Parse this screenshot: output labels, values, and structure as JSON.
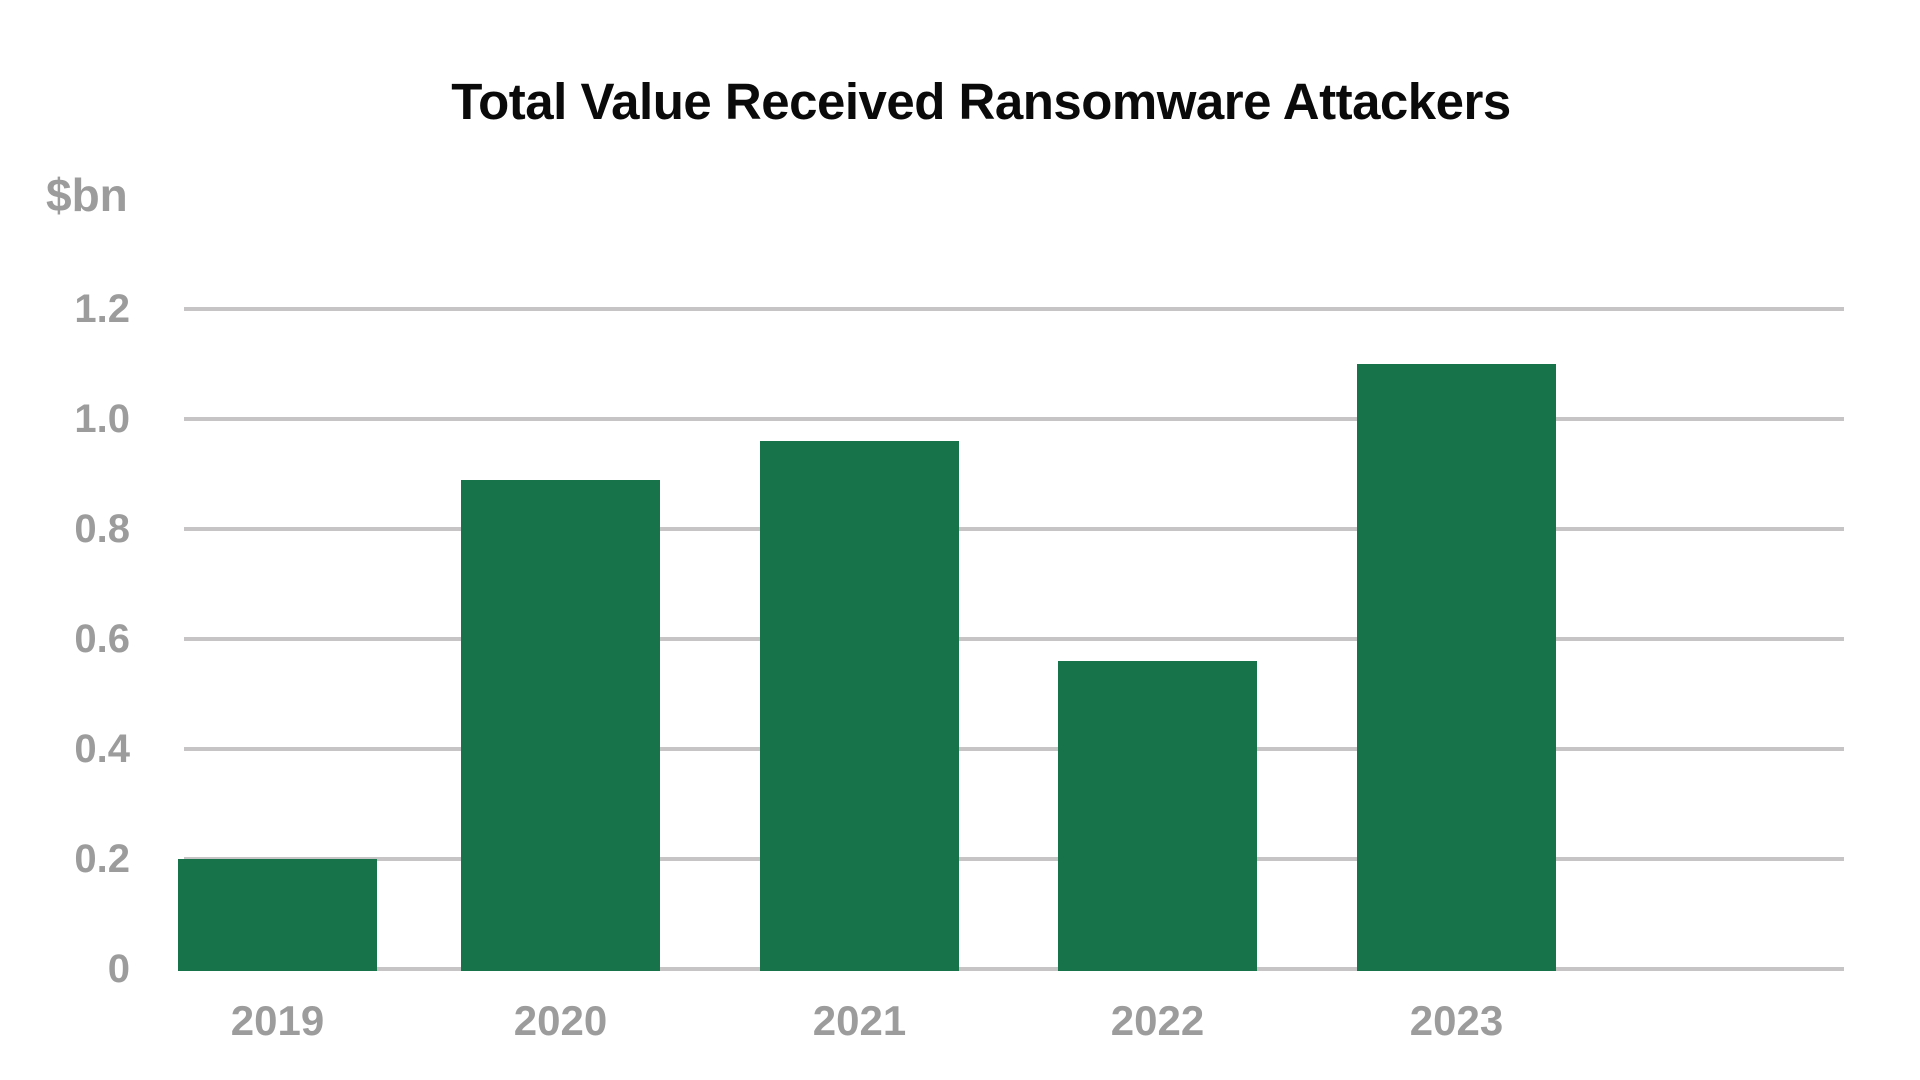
{
  "chart_data": {
    "type": "bar",
    "title": "Total Value Received Ransomware Attackers",
    "ylabel": "$bn",
    "xlabel": "",
    "categories": [
      "2019",
      "2020",
      "2021",
      "2022",
      "2023"
    ],
    "values": [
      0.2,
      0.89,
      0.96,
      0.56,
      1.1
    ],
    "yticks": [
      "1.2",
      "1.0",
      "0.8",
      "0.6",
      "0.4",
      "0.2",
      "0"
    ],
    "ytick_values": [
      1.2,
      1.0,
      0.8,
      0.6,
      0.4,
      0.2,
      0
    ],
    "ylim": [
      0,
      1.2
    ],
    "grid": "horizontal",
    "legend": "none",
    "colors": {
      "bar": "#17734A",
      "gridline": "#C6C4C4",
      "axis_text": "#9C9C9C",
      "title": "#0A0A0A",
      "background": "#FFFFFF"
    }
  }
}
